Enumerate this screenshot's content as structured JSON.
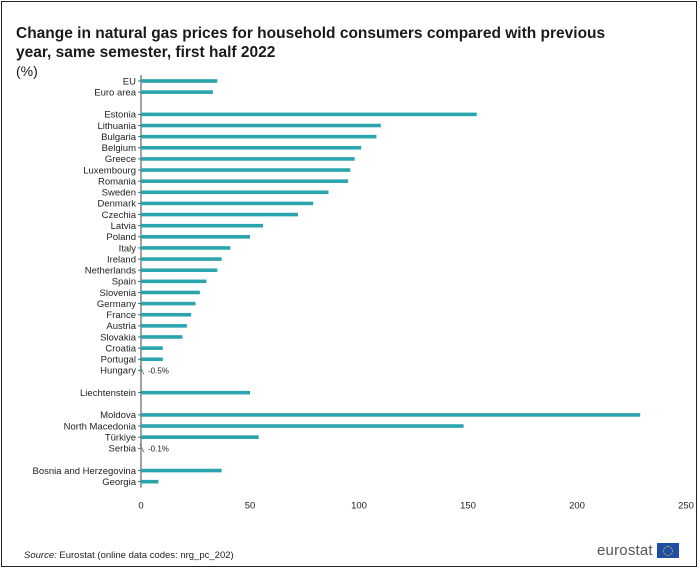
{
  "title": "Change in natural gas prices for household consumers compared with previous year, same semester, first half 2022",
  "unit": "(%)",
  "source": {
    "label": "Source:",
    "text": "Eurostat (online data codes: nrg_pc_202)"
  },
  "logo": {
    "text": "eurostat",
    "icon": "eu-flag-icon"
  },
  "colors": {
    "bar": "#2aa4ad"
  },
  "chart_data": {
    "type": "bar",
    "orientation": "horizontal",
    "title": "Change in natural gas prices for household consumers compared with previous year, same semester, first half 2022",
    "xlabel": "",
    "ylabel": "",
    "xlim": [
      0,
      250
    ],
    "xticks": [
      0,
      50,
      100,
      150,
      200,
      250
    ],
    "grid": false,
    "legend": "none",
    "categories": [
      "EU",
      "Euro area",
      "",
      "Estonia",
      "Lithuania",
      "Bulgaria",
      "Belgium",
      "Greece",
      "Luxembourg",
      "Romania",
      "Sweden",
      "Denmark",
      "Czechia",
      "Latvia",
      "Poland",
      "Italy",
      "Ireland",
      "Netherlands",
      "Spain",
      "Slovenia",
      "Germany",
      "France",
      "Austria",
      "Slovakia",
      "Croatia",
      "Portugal",
      "Hungary",
      "",
      "Liechtenstein",
      "",
      "Moldova",
      "North Macedonia",
      "Türkiye",
      "Serbia",
      "",
      "Bosnia and Herzegovina",
      "Georgia"
    ],
    "values": [
      35,
      33,
      null,
      154,
      110,
      108,
      101,
      98,
      96,
      95,
      86,
      79,
      72,
      56,
      50,
      41,
      37,
      35,
      30,
      27,
      25,
      23,
      21,
      19,
      10,
      10,
      -0.5,
      null,
      50,
      null,
      229,
      148,
      54,
      -0.1,
      null,
      37,
      8
    ],
    "data_labels": [
      {
        "category": "Hungary",
        "text": "-0.5%"
      },
      {
        "category": "Serbia",
        "text": "-0.1%"
      }
    ]
  }
}
